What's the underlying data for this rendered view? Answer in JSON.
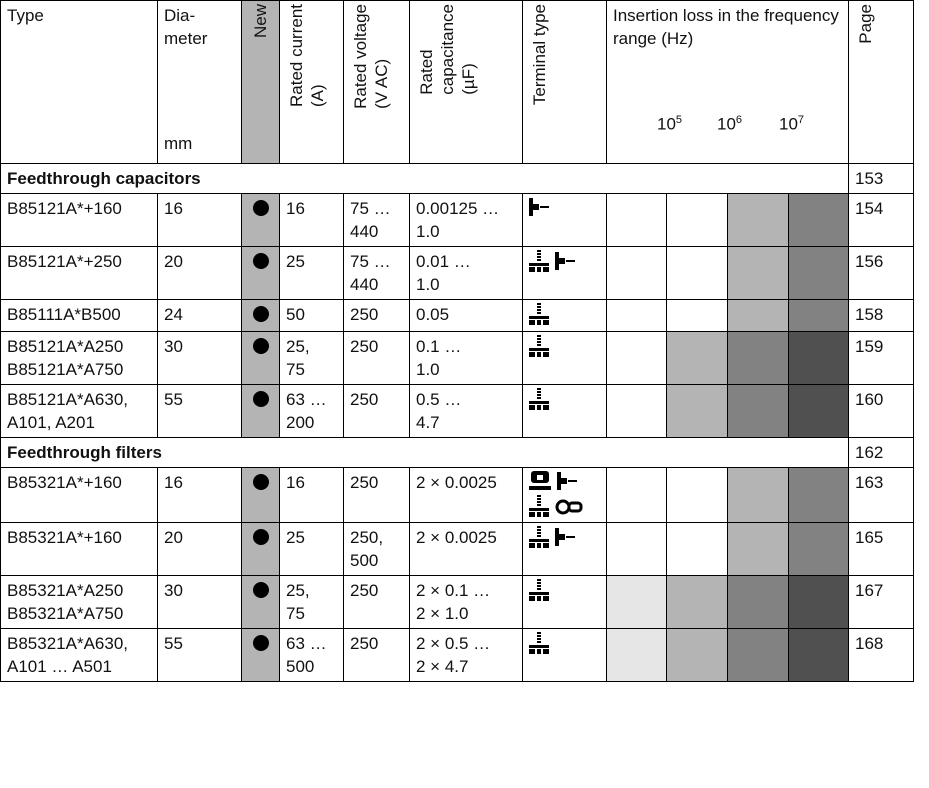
{
  "header": {
    "type": "Type",
    "diameter": "Dia-\nmeter",
    "diameter_unit": "mm",
    "new": "New",
    "rated_current": "Rated current\n(A)",
    "rated_voltage": "Rated voltage\n(V AC)",
    "rated_capacitance": "Rated\ncapacitance\n(µF)",
    "terminal_type": "Terminal type",
    "insertion_loss": "Insertion loss in the frequency range (Hz)",
    "freq_ticks": [
      {
        "base": "10",
        "exp": "5"
      },
      {
        "base": "10",
        "exp": "6"
      },
      {
        "base": "10",
        "exp": "7"
      }
    ],
    "page": "Page"
  },
  "sections": [
    {
      "title": "Feedthrough capacitors",
      "page": "153",
      "rows": [
        {
          "type": "B85121A*+160",
          "diameter": "16",
          "new": true,
          "current": "16",
          "voltage": "75 …\n440",
          "capacitance": "0.00125 …\n1.0",
          "terminals": [
            [
              "bolt-terminal-icon"
            ]
          ],
          "loss": [
            0,
            0,
            2,
            3
          ],
          "page": "154"
        },
        {
          "type": "B85121A*+250",
          "diameter": "20",
          "new": true,
          "current": "25",
          "voltage": "75 …\n440",
          "capacitance": "0.01 …\n1.0",
          "terminals": [
            [
              "threaded-stud-icon",
              "bolt-terminal-icon"
            ]
          ],
          "loss": [
            0,
            0,
            2,
            3
          ],
          "page": "156"
        },
        {
          "type": "B85111A*B500",
          "diameter": "24",
          "new": true,
          "current": "50",
          "voltage": "250",
          "capacitance": "0.05",
          "terminals": [
            [
              "threaded-stud-icon"
            ]
          ],
          "loss": [
            0,
            0,
            2,
            3
          ],
          "page": "158"
        },
        {
          "type": "B85121A*A250\nB85121A*A750",
          "diameter": "30",
          "new": true,
          "current": "25,\n75",
          "voltage": "250",
          "capacitance": "0.1 …\n1.0",
          "terminals": [
            [
              "threaded-stud-icon"
            ]
          ],
          "loss": [
            0,
            2,
            3,
            4
          ],
          "page": "159"
        },
        {
          "type": "B85121A*A630,\nA101, A201",
          "diameter": "55",
          "new": true,
          "current": "63 …\n200",
          "voltage": "250",
          "capacitance": "0.5 …\n4.7",
          "terminals": [
            [
              "threaded-stud-icon"
            ]
          ],
          "loss": [
            0,
            2,
            3,
            4
          ],
          "page": "160"
        }
      ]
    },
    {
      "title": "Feedthrough filters",
      "page": "162",
      "rows": [
        {
          "type": "B85321A*+160",
          "diameter": "16",
          "new": true,
          "current": "16",
          "voltage": "250",
          "capacitance": "2 × 0.0025",
          "terminals": [
            [
              "solder-tag-icon",
              "bolt-terminal-icon"
            ],
            [
              "threaded-stud-icon",
              "ring-terminal-icon"
            ]
          ],
          "loss": [
            0,
            0,
            2,
            3
          ],
          "page": "163"
        },
        {
          "type": "B85321A*+160",
          "diameter": "20",
          "new": true,
          "current": "25",
          "voltage": "250,\n500",
          "capacitance": "2 × 0.0025",
          "terminals": [
            [
              "threaded-stud-icon",
              "bolt-terminal-icon"
            ]
          ],
          "loss": [
            0,
            0,
            2,
            3
          ],
          "page": "165"
        },
        {
          "type": "B85321A*A250\nB85321A*A750",
          "diameter": "30",
          "new": true,
          "current": "25,\n75",
          "voltage": "250",
          "capacitance": "2 × 0.1 …\n2 × 1.0",
          "terminals": [
            [
              "threaded-stud-icon"
            ]
          ],
          "loss": [
            1,
            2,
            3,
            4
          ],
          "page": "167"
        },
        {
          "type": "B85321A*A630,\nA101 … A501",
          "diameter": "55",
          "new": true,
          "current": "63 …\n500",
          "voltage": "250",
          "capacitance": "2 × 0.5 …\n2 × 4.7",
          "terminals": [
            [
              "threaded-stud-icon"
            ]
          ],
          "loss": [
            1,
            2,
            3,
            4
          ],
          "page": "168"
        }
      ]
    }
  ]
}
